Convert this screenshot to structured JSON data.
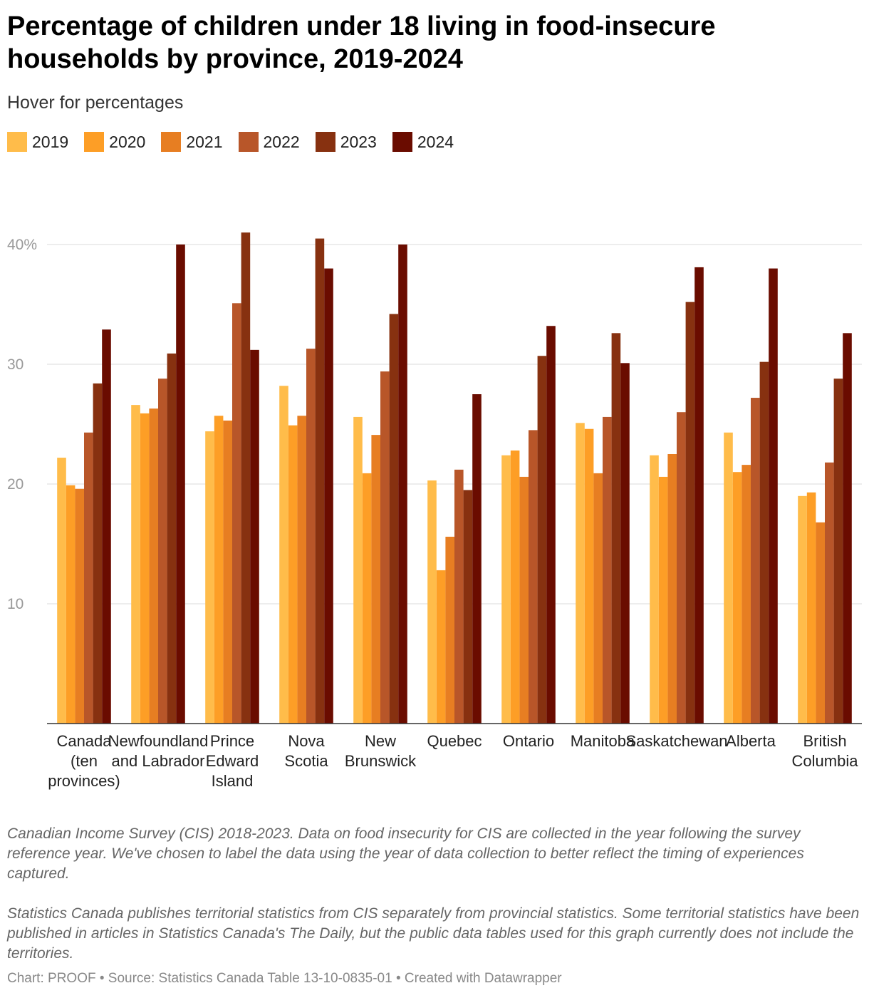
{
  "header": {
    "title": "Percentage of children under 18 living in food-insecure households by province, 2019-2024",
    "subtitle": "Hover for percentages"
  },
  "notes": [
    "Canadian Income Survey (CIS) 2018-2023. Data on food insecurity for CIS are collected in the year following the survey reference year. We've chosen to label the data using the year of data collection to better reflect the timing of experiences captured.",
    "Statistics Canada publishes territorial statistics from CIS separately from provincial statistics. Some territorial statistics have been published in articles in Statistics Canada's The Daily, but the public data tables used for this graph currently does not include the territories."
  ],
  "footer": {
    "text": "Chart: PROOF • Source: Statistics Canada Table 13-10-0835-01 • Created with Datawrapper"
  },
  "chart_data": {
    "type": "bar",
    "ylim": [
      0,
      41
    ],
    "grid": true,
    "legend_position": "top-left",
    "yticks": [
      {
        "value": 10,
        "label": "10"
      },
      {
        "value": 20,
        "label": "20"
      },
      {
        "value": 30,
        "label": "30"
      },
      {
        "value": 40,
        "label": "40%"
      }
    ],
    "categories": [
      [
        "Canada",
        "(ten",
        "provinces)"
      ],
      [
        "Newfoundland",
        "and Labrador"
      ],
      [
        "Prince",
        "Edward",
        "Island"
      ],
      [
        "Nova",
        "Scotia"
      ],
      [
        "New",
        "Brunswick"
      ],
      [
        "Quebec"
      ],
      [
        "Ontario"
      ],
      [
        "Manitoba"
      ],
      [
        "Saskatchewan"
      ],
      [
        "Alberta"
      ],
      [
        "British",
        "Columbia"
      ]
    ],
    "series": [
      {
        "name": "2019",
        "color": "#ffbc4a",
        "values": [
          22.2,
          26.6,
          24.4,
          28.2,
          25.6,
          20.3,
          22.4,
          25.1,
          22.4,
          24.3,
          19.0
        ]
      },
      {
        "name": "2020",
        "color": "#fd9e26",
        "values": [
          19.9,
          25.9,
          25.7,
          24.9,
          20.9,
          12.8,
          22.8,
          24.6,
          20.6,
          21.0,
          19.3
        ]
      },
      {
        "name": "2021",
        "color": "#e77e22",
        "values": [
          19.6,
          26.3,
          25.3,
          25.7,
          24.1,
          15.6,
          20.6,
          20.9,
          22.5,
          21.6,
          16.8
        ]
      },
      {
        "name": "2022",
        "color": "#b85629",
        "values": [
          24.3,
          28.8,
          35.1,
          31.3,
          29.4,
          21.2,
          24.5,
          25.6,
          26.0,
          27.2,
          21.8
        ]
      },
      {
        "name": "2023",
        "color": "#873110",
        "values": [
          28.4,
          30.9,
          41.0,
          40.5,
          34.2,
          19.5,
          30.7,
          32.6,
          35.2,
          30.2,
          28.8
        ]
      },
      {
        "name": "2024",
        "color": "#6a0c00",
        "values": [
          32.9,
          40.0,
          31.2,
          38.0,
          40.0,
          27.5,
          33.2,
          30.1,
          38.1,
          38.0,
          32.6
        ]
      }
    ]
  }
}
